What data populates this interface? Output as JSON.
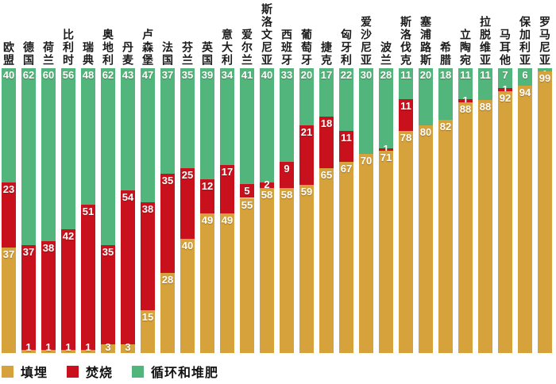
{
  "chart_data": {
    "type": "bar",
    "variant": "stacked-vertical-100pct",
    "title": "",
    "unit": "%",
    "grid": false,
    "legend_position": "bottom-left",
    "legend": [
      {
        "key": "landfill",
        "label": "填埋",
        "color": "#d5a23b"
      },
      {
        "key": "incineration",
        "label": "焚烧",
        "color": "#c8111d"
      },
      {
        "key": "recycling",
        "label": "循环和堆肥",
        "color": "#52b67c"
      }
    ],
    "categories": [
      "欧盟",
      "德国",
      "荷兰",
      "比利时",
      "瑞典",
      "奥地利",
      "丹麦",
      "卢森堡",
      "法国",
      "芬兰",
      "英国",
      "意大利",
      "爱尔兰",
      "斯洛文尼亚",
      "西班牙",
      "葡萄牙",
      "捷克",
      "匈牙利",
      "爱沙尼亚",
      "波兰",
      "斯洛伐克",
      "塞浦路斯",
      "希腊",
      "立陶宛",
      "拉脱维亚",
      "马耳他",
      "保加利亚",
      "罗马尼亚"
    ],
    "series": [
      {
        "name": "循环和堆肥",
        "key": "recycling",
        "stack_position": "top",
        "values": [
          40,
          62,
          60,
          56,
          48,
          62,
          43,
          47,
          37,
          35,
          39,
          34,
          41,
          40,
          33,
          20,
          17,
          22,
          30,
          28,
          11,
          20,
          18,
          11,
          11,
          7,
          6,
          1
        ]
      },
      {
        "name": "焚烧",
        "key": "incineration",
        "stack_position": "middle",
        "values": [
          23,
          37,
          38,
          42,
          51,
          35,
          54,
          38,
          35,
          25,
          12,
          17,
          5,
          2,
          9,
          21,
          18,
          11,
          0,
          1,
          11,
          0,
          0,
          1,
          0,
          1,
          0,
          0
        ]
      },
      {
        "name": "填埋",
        "key": "landfill",
        "stack_position": "bottom",
        "values": [
          37,
          1,
          1,
          1,
          1,
          3,
          3,
          15,
          28,
          40,
          49,
          49,
          55,
          58,
          58,
          59,
          65,
          67,
          70,
          71,
          78,
          80,
          82,
          88,
          88,
          92,
          94,
          99
        ]
      }
    ],
    "value_labels_shown": true,
    "label_color": "#ffffff",
    "category_label_color": "#1b1b1b",
    "background_color": "#ffffff"
  }
}
